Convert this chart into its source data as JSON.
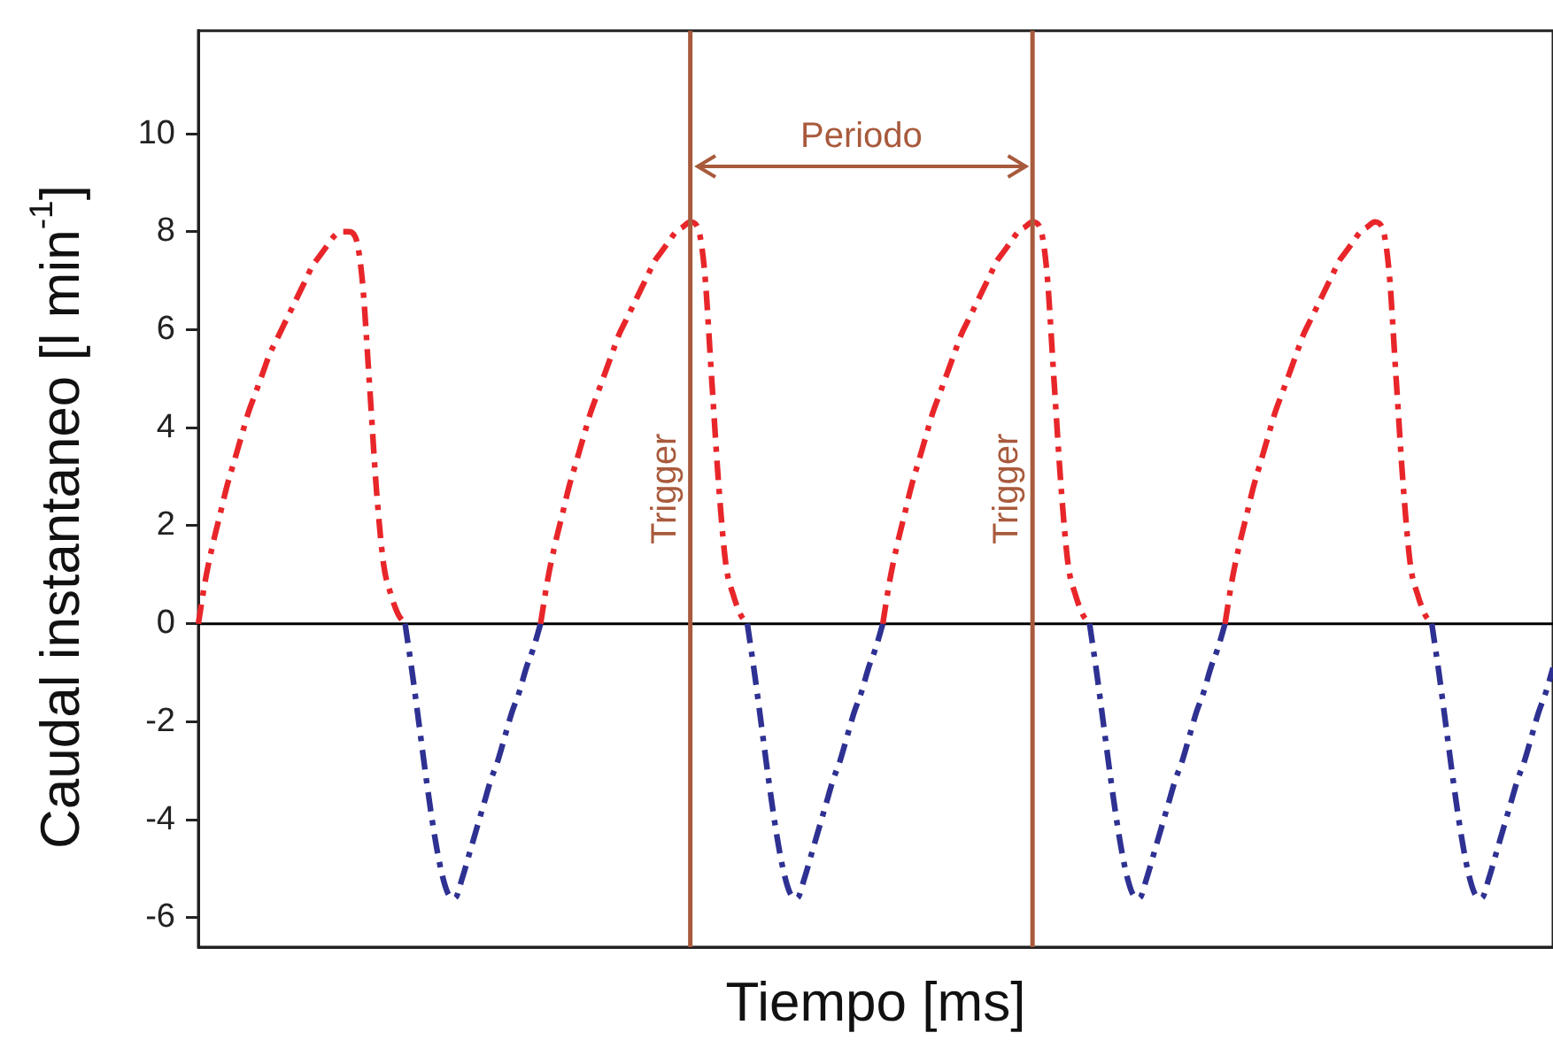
{
  "chart_data": {
    "type": "line",
    "xlabel": "Tiempo [ms]",
    "ylabel": "Caudal instantaneo [l min$^{-1}$]",
    "categories": [
      null,
      null,
      null,
      null,
      null,
      null,
      null,
      null,
      null,
      null,
      null,
      null,
      null,
      null,
      null,
      null,
      null,
      null,
      null,
      null,
      null,
      null,
      null,
      null,
      null,
      null,
      null,
      null,
      null,
      null,
      null,
      null,
      null,
      null,
      null,
      null,
      null,
      null,
      null,
      null,
      null,
      null,
      null,
      null,
      null,
      null,
      null,
      null,
      null,
      null,
      null,
      null,
      null,
      null,
      null,
      null,
      null,
      null,
      null,
      null,
      null,
      null,
      null,
      null,
      null,
      null,
      null,
      null,
      null,
      null,
      null,
      null,
      null,
      null,
      null,
      null,
      null,
      null,
      null,
      null,
      null,
      null,
      null,
      null,
      null,
      null,
      null,
      null,
      null,
      null,
      null,
      null,
      null,
      null,
      null,
      null,
      null,
      null,
      null,
      null,
      null,
      null,
      null,
      null,
      null,
      null,
      null,
      null,
      null,
      null,
      null,
      null,
      null,
      null,
      null,
      null,
      null,
      null,
      null,
      null,
      null,
      null,
      null,
      null,
      null,
      null,
      null,
      null,
      null,
      null,
      null,
      null,
      null,
      null,
      null,
      null,
      null,
      null,
      null,
      null,
      null,
      null,
      null,
      null,
      null,
      null,
      null,
      null,
      null,
      null,
      null,
      null,
      null,
      null,
      null,
      null,
      null,
      null,
      null,
      null,
      null,
      null,
      null,
      null,
      null,
      null,
      null,
      null,
      null,
      null,
      null,
      null,
      null,
      null,
      null,
      null,
      null,
      null,
      null,
      null,
      null,
      null,
      null,
      null,
      null,
      null,
      null,
      null,
      null,
      null,
      null
    ],
    "series": [
      {
        "color": "#e8262a",
        "values": [
          0,
          0.9,
          1.6,
          2.2,
          2.8,
          3.3,
          3.8,
          4.3,
          4.7,
          5.1,
          5.5,
          5.8,
          6.1,
          6.4,
          6.7,
          7.0,
          7.3,
          7.5,
          7.7,
          7.9,
          8.0,
          8.0,
          7.9,
          7.0,
          4.9,
          2.7,
          1.2,
          0.6,
          0.2,
          0,
          null,
          null,
          null,
          null,
          null,
          null,
          null,
          null,
          null,
          null,
          null,
          null,
          null,
          null,
          null,
          null,
          null,
          null,
          0,
          0.9,
          1.6,
          2.2,
          2.8,
          3.3,
          3.8,
          4.3,
          4.7,
          5.1,
          5.5,
          5.9,
          6.2,
          6.5,
          6.8,
          7.1,
          7.4,
          7.6,
          7.8,
          8.0,
          8.1,
          8.2,
          8.1,
          7.2,
          5.0,
          2.8,
          1.2,
          0.6,
          0.2,
          0,
          null,
          null,
          null,
          null,
          null,
          null,
          null,
          null,
          null,
          null,
          null,
          null,
          null,
          null,
          null,
          null,
          null,
          null,
          0,
          0.9,
          1.6,
          2.2,
          2.8,
          3.3,
          3.8,
          4.3,
          4.7,
          5.1,
          5.5,
          5.9,
          6.2,
          6.5,
          6.8,
          7.1,
          7.4,
          7.6,
          7.8,
          8.0,
          8.1,
          8.2,
          8.1,
          7.2,
          5.0,
          2.8,
          1.2,
          0.6,
          0.2,
          0,
          null,
          null,
          null,
          null,
          null,
          null,
          null,
          null,
          null,
          null,
          null,
          null,
          null,
          null,
          null,
          null,
          null,
          null,
          0,
          0.9,
          1.6,
          2.2,
          2.8,
          3.3,
          3.8,
          4.3,
          4.7,
          5.1,
          5.5,
          5.9,
          6.2,
          6.5,
          6.8,
          7.1,
          7.4,
          7.6,
          7.8,
          8.0,
          8.1,
          8.2,
          8.1,
          7.2,
          5.0,
          2.8,
          1.2,
          0.6,
          0.2,
          0,
          null,
          null,
          null,
          null,
          null,
          null,
          null,
          null,
          null,
          null,
          null,
          null,
          null,
          null,
          null,
          null,
          null
        ]
      },
      {
        "color": "#2e3192",
        "values": [
          null,
          null,
          null,
          null,
          null,
          null,
          null,
          null,
          null,
          null,
          null,
          null,
          null,
          null,
          null,
          null,
          null,
          null,
          null,
          null,
          null,
          null,
          null,
          null,
          null,
          null,
          null,
          null,
          null,
          0,
          -1.0,
          -2.1,
          -3.2,
          -4.2,
          -5.0,
          -5.5,
          -5.6,
          -5.2,
          -4.7,
          -4.2,
          -3.7,
          -3.2,
          -2.8,
          -2.3,
          -1.8,
          -1.4,
          -0.9,
          -0.5,
          0,
          null,
          null,
          null,
          null,
          null,
          null,
          null,
          null,
          null,
          null,
          null,
          null,
          null,
          null,
          null,
          null,
          null,
          null,
          null,
          null,
          null,
          null,
          null,
          null,
          null,
          null,
          null,
          null,
          0,
          -1.0,
          -2.1,
          -3.2,
          -4.2,
          -5.0,
          -5.5,
          -5.6,
          -5.2,
          -4.7,
          -4.2,
          -3.7,
          -3.2,
          -2.8,
          -2.3,
          -1.8,
          -1.4,
          -0.9,
          -0.5,
          0,
          null,
          null,
          null,
          null,
          null,
          null,
          null,
          null,
          null,
          null,
          null,
          null,
          null,
          null,
          null,
          null,
          null,
          null,
          null,
          null,
          null,
          null,
          null,
          null,
          null,
          null,
          null,
          null,
          0,
          -1.0,
          -2.1,
          -3.2,
          -4.2,
          -5.0,
          -5.5,
          -5.6,
          -5.2,
          -4.7,
          -4.2,
          -3.7,
          -3.2,
          -2.8,
          -2.3,
          -1.8,
          -1.4,
          -0.9,
          -0.5,
          0,
          null,
          null,
          null,
          null,
          null,
          null,
          null,
          null,
          null,
          null,
          null,
          null,
          null,
          null,
          null,
          null,
          null,
          null,
          null,
          null,
          null,
          null,
          null,
          null,
          null,
          null,
          null,
          null,
          0,
          -1.0,
          -2.1,
          -3.2,
          -4.2,
          -5.0,
          -5.5,
          -5.6,
          -5.2,
          -4.7,
          -4.2,
          -3.7,
          -3.2,
          -2.8,
          -2.3,
          -1.8,
          -1.4,
          -0.9
        ]
      }
    ],
    "ylim": [
      -6.6,
      12.1
    ],
    "yticks": [
      -6,
      -4,
      -2,
      0,
      2,
      4,
      6,
      8,
      10
    ],
    "tick_labels": "y",
    "grid": false,
    "legend": false,
    "line_style": "dashed",
    "ref_lines": [
      {
        "axis": "y",
        "value": 0,
        "color": "#000000"
      }
    ],
    "annotations": [
      "Trigger",
      "Trigger",
      "Periodo"
    ]
  }
}
